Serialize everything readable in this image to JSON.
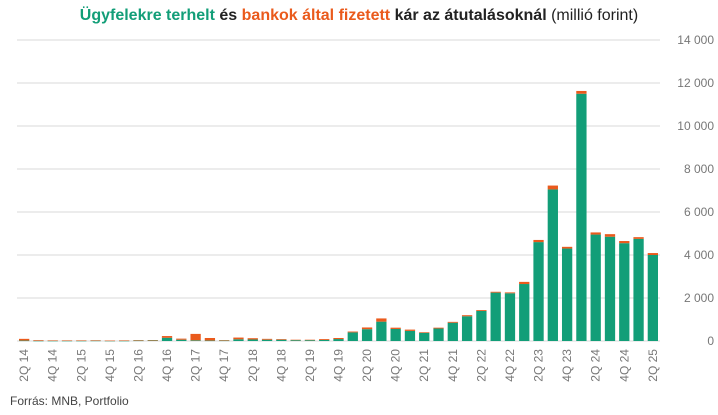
{
  "title": {
    "part1": "Ügyfelekre terhelt",
    "part2": " és ",
    "part3": "bankok által fizetett",
    "part4": " kár az átutalásoknál",
    "part5": " (millió forint)"
  },
  "source": "Forrás:  MNB, Portfolio",
  "colors": {
    "customer": "#129e78",
    "bank": "#ea5a1c",
    "grid": "#d9d9d9",
    "tick": "#777777"
  },
  "chart_data": {
    "type": "bar",
    "stacked": true,
    "ylim": [
      0,
      14000
    ],
    "y_ticks": [
      "0",
      "2 000",
      "4 000",
      "6 000",
      "8 000",
      "10 000",
      "12 000",
      "14 000"
    ],
    "y_tick_values": [
      0,
      2000,
      4000,
      6000,
      8000,
      10000,
      12000,
      14000
    ],
    "grid": true,
    "categories": [
      "2Q 14",
      "3Q 14",
      "4Q 14",
      "1Q 15",
      "2Q 15",
      "3Q 15",
      "4Q 15",
      "1Q 16",
      "2Q 16",
      "3Q 16",
      "4Q 16",
      "1Q 17",
      "2Q 17",
      "3Q 17",
      "4Q 17",
      "1Q 18",
      "2Q 18",
      "3Q 18",
      "4Q 18",
      "1Q 19",
      "2Q 19",
      "3Q 19",
      "4Q 19",
      "1Q 20",
      "2Q 20",
      "3Q 20",
      "4Q 20",
      "1Q 21",
      "2Q 21",
      "3Q 21",
      "4Q 21",
      "1Q 22",
      "2Q 22",
      "3Q 22",
      "4Q 22",
      "1Q 23",
      "2Q 23",
      "3Q 23",
      "4Q 23",
      "1Q 24",
      "2Q 24",
      "3Q 24",
      "4Q 24",
      "1Q 25",
      "2Q 25"
    ],
    "x_tick_labels": [
      "2Q 14",
      "4Q 14",
      "2Q 15",
      "4Q 15",
      "2Q 16",
      "4Q 16",
      "2Q 17",
      "4Q 17",
      "2Q 18",
      "4Q 18",
      "2Q 19",
      "4Q 19",
      "2Q 20",
      "4Q 20",
      "2Q 21",
      "4Q 21",
      "2Q 22",
      "4Q 22",
      "2Q 23",
      "4Q 23",
      "2Q 24",
      "4Q 24",
      "2Q 25"
    ],
    "series": [
      {
        "name": "Ügyfelekre terhelt",
        "color": "#129e78",
        "values": [
          20,
          10,
          10,
          10,
          10,
          15,
          10,
          10,
          20,
          30,
          150,
          60,
          30,
          20,
          20,
          80,
          70,
          60,
          60,
          40,
          40,
          50,
          90,
          400,
          550,
          900,
          560,
          470,
          380,
          580,
          850,
          1150,
          1400,
          2250,
          2220,
          2650,
          4600,
          7050,
          4300,
          11500,
          4950,
          4850,
          4550,
          4750,
          4000
        ]
      },
      {
        "name": "bankok által fizetett",
        "color": "#ea5a1c",
        "values": [
          80,
          30,
          20,
          20,
          20,
          20,
          10,
          20,
          20,
          10,
          80,
          50,
          300,
          120,
          20,
          80,
          60,
          40,
          30,
          20,
          20,
          40,
          50,
          40,
          80,
          150,
          60,
          60,
          30,
          40,
          40,
          50,
          40,
          40,
          40,
          100,
          100,
          180,
          80,
          130,
          100,
          120,
          100,
          80,
          90
        ]
      }
    ]
  }
}
